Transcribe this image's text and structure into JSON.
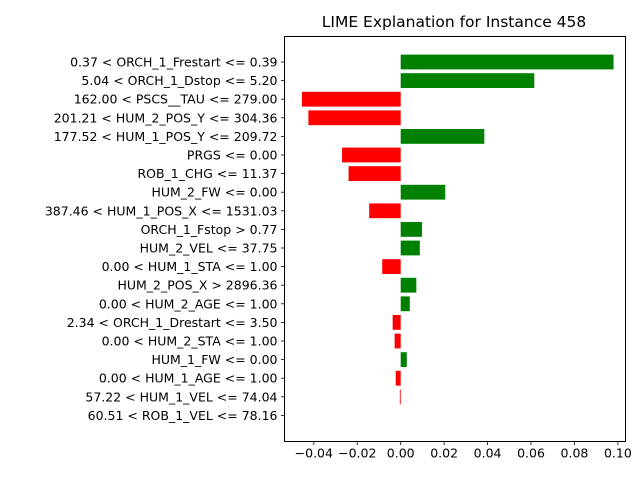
{
  "chart_data": {
    "type": "bar",
    "orientation": "horizontal",
    "title": "LIME Explanation for Instance 458",
    "xlabel": "",
    "ylabel": "",
    "xlim": [
      -0.0535,
      0.1035
    ],
    "xticks": [
      -0.04,
      -0.02,
      0.0,
      0.02,
      0.04,
      0.06,
      0.08,
      0.1
    ],
    "xtick_labels": [
      "−0.04",
      "−0.02",
      "0.00",
      "0.02",
      "0.04",
      "0.06",
      "0.08",
      "0.10"
    ],
    "grid": false,
    "colors": {
      "positive": "#008000",
      "negative": "#ff0000"
    },
    "categories": [
      "0.37 < ORCH_1_Frestart <= 0.39",
      "5.04 < ORCH_1_Dstop <= 5.20",
      "162.00 < PSCS__TAU <= 279.00",
      "201.21 < HUM_2_POS_Y <= 304.36",
      "177.52 < HUM_1_POS_Y <= 209.72",
      "PRGS <= 0.00",
      "ROB_1_CHG <= 11.37",
      "HUM_2_FW <= 0.00",
      "387.46 < HUM_1_POS_X <= 1531.03",
      "ORCH_1_Fstop > 0.77",
      "HUM_2_VEL <= 37.75",
      "0.00 < HUM_1_STA <= 1.00",
      "HUM_2_POS_X > 2896.36",
      "0.00 < HUM_2_AGE <= 1.00",
      "2.34 < ORCH_1_Drestart <= 3.50",
      "0.00 < HUM_2_STA <= 1.00",
      "HUM_1_FW <= 0.00",
      "0.00 < HUM_1_AGE <= 1.00",
      "57.22 < HUM_1_VEL <= 74.04",
      "60.51 < ROB_1_VEL <= 78.16"
    ],
    "values": [
      0.098,
      0.0615,
      -0.0455,
      -0.0425,
      0.0385,
      -0.027,
      -0.024,
      0.0205,
      -0.0145,
      0.0098,
      0.0088,
      -0.0085,
      0.0072,
      0.0042,
      -0.0037,
      -0.0028,
      0.0028,
      -0.0023,
      -0.0004,
      0.0
    ]
  }
}
